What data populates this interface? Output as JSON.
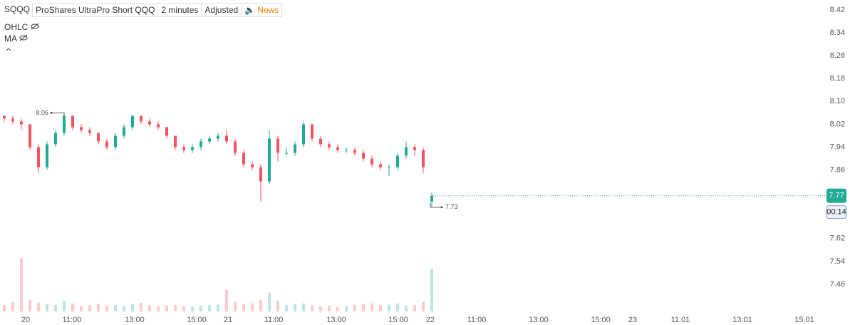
{
  "chart_data": {
    "type": "candlestick",
    "symbol": "SQQQ",
    "description": "ProShares UltraPro Short QQQ",
    "interval": "2 minutes",
    "adjustment": "Adjusted",
    "news": "News",
    "indicators": [
      "OHLC",
      "MA"
    ],
    "up_color": "#22ab94",
    "down_color": "#f7525f",
    "open": [
      8.05,
      8.04,
      8.03,
      8.02,
      7.94,
      7.87,
      7.95,
      7.99,
      8.05,
      8.01,
      8.0,
      7.99,
      7.96,
      7.94,
      7.98,
      8.01,
      8.05,
      8.03,
      8.02,
      8.01,
      7.98,
      7.94,
      7.93,
      7.94,
      7.96,
      7.97,
      7.98,
      7.96,
      7.92,
      7.88,
      7.87,
      7.82,
      7.97,
      7.92,
      7.92,
      7.95,
      8.02,
      7.97,
      7.95,
      7.94,
      7.93,
      7.93,
      7.92,
      7.9,
      7.88,
      7.87,
      7.87,
      7.91,
      7.94,
      7.93,
      7.75
    ],
    "high": [
      8.05,
      8.05,
      8.04,
      8.02,
      7.95,
      7.96,
      8.0,
      8.06,
      8.05,
      8.02,
      8.01,
      7.99,
      7.97,
      7.99,
      8.02,
      8.05,
      8.05,
      8.04,
      8.03,
      8.01,
      7.98,
      7.95,
      7.95,
      7.97,
      7.98,
      7.99,
      8.0,
      7.97,
      7.93,
      7.89,
      7.88,
      8.0,
      7.98,
      7.94,
      7.96,
      8.03,
      8.02,
      7.98,
      7.96,
      7.95,
      7.94,
      7.94,
      7.93,
      7.91,
      7.89,
      7.88,
      7.92,
      7.96,
      7.95,
      7.94,
      7.78
    ],
    "low": [
      8.03,
      8.02,
      8.0,
      7.93,
      7.85,
      7.86,
      7.94,
      7.98,
      8.0,
      7.99,
      7.98,
      7.95,
      7.93,
      7.93,
      7.97,
      8.0,
      8.02,
      8.01,
      8.0,
      7.97,
      7.93,
      7.92,
      7.92,
      7.93,
      7.95,
      7.96,
      7.95,
      7.91,
      7.87,
      7.86,
      7.75,
      7.81,
      7.89,
      7.91,
      7.91,
      7.94,
      7.96,
      7.94,
      7.93,
      7.92,
      7.92,
      7.91,
      7.89,
      7.87,
      7.86,
      7.84,
      7.86,
      7.9,
      7.91,
      7.85,
      7.73
    ],
    "close": [
      8.04,
      8.03,
      8.02,
      7.94,
      7.87,
      7.95,
      7.99,
      8.05,
      8.01,
      8.0,
      7.99,
      7.96,
      7.94,
      7.98,
      8.01,
      8.05,
      8.03,
      8.02,
      8.01,
      7.98,
      7.94,
      7.93,
      7.94,
      7.96,
      7.97,
      7.98,
      7.96,
      7.92,
      7.88,
      7.87,
      7.82,
      7.97,
      7.92,
      7.92,
      7.95,
      8.02,
      7.97,
      7.95,
      7.94,
      7.93,
      7.93,
      7.92,
      7.9,
      7.88,
      7.87,
      7.87,
      7.91,
      7.94,
      7.93,
      7.87,
      7.77
    ],
    "volume": [
      12,
      18,
      100,
      22,
      16,
      14,
      12,
      20,
      15,
      10,
      12,
      14,
      11,
      12,
      10,
      14,
      16,
      12,
      10,
      11,
      12,
      10,
      9,
      11,
      12,
      13,
      40,
      18,
      14,
      16,
      22,
      35,
      20,
      12,
      14,
      15,
      12,
      10,
      11,
      9,
      10,
      12,
      14,
      16,
      12,
      13,
      15,
      11,
      12,
      18,
      80
    ],
    "countdown": "00:14",
    "ylim": [
      7.46,
      8.42
    ],
    "yticks": [
      8.42,
      8.34,
      8.26,
      8.18,
      {
        "value": 8.1,
        "label": "8.10"
      },
      8.02,
      7.94,
      7.86,
      7.62,
      7.54,
      7.46
    ],
    "xlabels": [
      "20",
      "11:00",
      "13:00",
      "15:00",
      "21",
      "11:00",
      "13:00",
      "15:00",
      "22",
      "11:00",
      "13:00",
      "15:00",
      "23",
      "11:01",
      "13:01",
      "15:01"
    ]
  }
}
